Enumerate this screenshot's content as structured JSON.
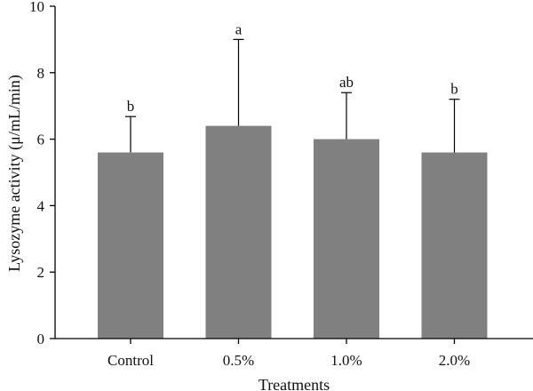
{
  "chart_data": {
    "type": "bar",
    "categories": [
      "Control",
      "0.5%",
      "1.0%",
      "2.0%"
    ],
    "values": [
      5.6,
      6.4,
      6.0,
      5.6
    ],
    "error_upper": [
      6.68,
      9.0,
      7.4,
      7.2
    ],
    "significance_labels": [
      "b",
      "a",
      "ab",
      "b"
    ],
    "xlabel": "Treatments",
    "ylabel": "Lysozyme activity (μ/mL/min)",
    "ylim": [
      0,
      10
    ],
    "yticks": [
      0,
      2,
      4,
      6,
      8,
      10
    ],
    "grid": false,
    "bar_color": "#808080",
    "axis_color": "#000000"
  }
}
